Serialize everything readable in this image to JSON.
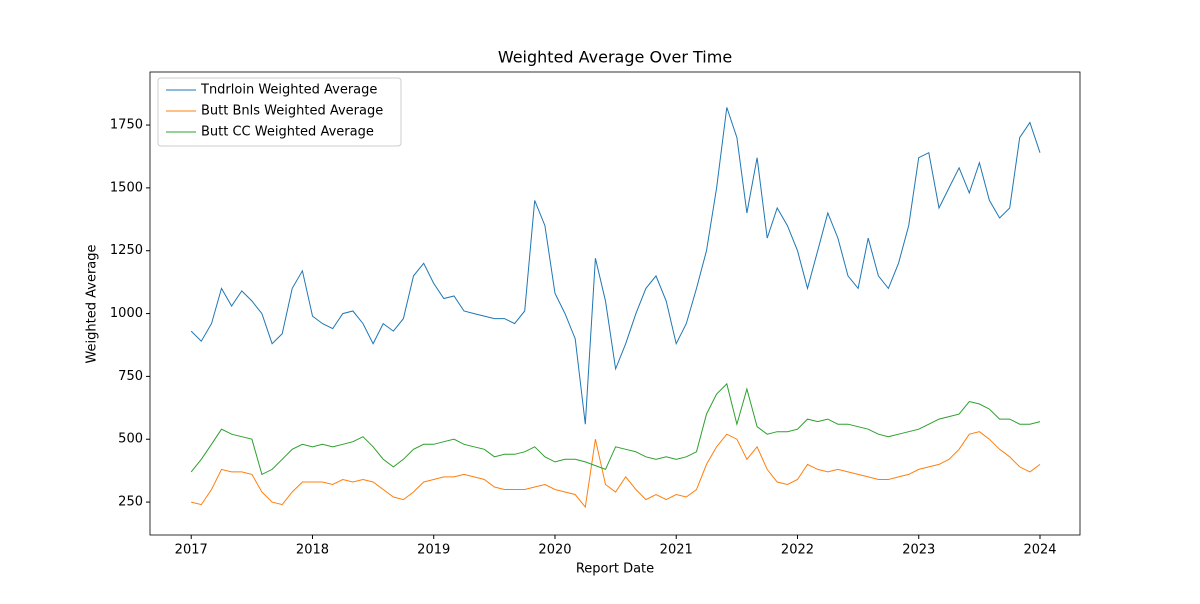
{
  "chart_data": {
    "type": "line",
    "title": "Weighted Average Over Time",
    "xlabel": "Report Date",
    "ylabel": "Weighted Average",
    "x": [
      2017,
      2017.083,
      2017.167,
      2017.25,
      2017.333,
      2017.417,
      2017.5,
      2017.583,
      2017.667,
      2017.75,
      2017.833,
      2017.917,
      2018,
      2018.083,
      2018.167,
      2018.25,
      2018.333,
      2018.417,
      2018.5,
      2018.583,
      2018.667,
      2018.75,
      2018.833,
      2018.917,
      2019,
      2019.083,
      2019.167,
      2019.25,
      2019.333,
      2019.417,
      2019.5,
      2019.583,
      2019.667,
      2019.75,
      2019.833,
      2019.917,
      2020,
      2020.083,
      2020.167,
      2020.25,
      2020.333,
      2020.417,
      2020.5,
      2020.583,
      2020.667,
      2020.75,
      2020.833,
      2020.917,
      2021,
      2021.083,
      2021.167,
      2021.25,
      2021.333,
      2021.417,
      2021.5,
      2021.583,
      2021.667,
      2021.75,
      2021.833,
      2021.917,
      2022,
      2022.083,
      2022.167,
      2022.25,
      2022.333,
      2022.417,
      2022.5,
      2022.583,
      2022.667,
      2022.75,
      2022.833,
      2022.917,
      2023,
      2023.083,
      2023.167,
      2023.25,
      2023.333,
      2023.417,
      2023.5,
      2023.583,
      2023.667,
      2023.75,
      2023.833,
      2023.917,
      2024
    ],
    "series": [
      {
        "name": "Tndrloin Weighted Average",
        "color": "#1f77b4",
        "values": [
          930,
          890,
          960,
          1100,
          1030,
          1090,
          1050,
          1000,
          880,
          920,
          1100,
          1170,
          990,
          960,
          940,
          1000,
          1010,
          960,
          880,
          960,
          930,
          980,
          1150,
          1200,
          1120,
          1060,
          1070,
          1010,
          1000,
          990,
          980,
          980,
          960,
          1010,
          1450,
          1350,
          1080,
          1000,
          900,
          560,
          1220,
          1050,
          780,
          880,
          1000,
          1100,
          1150,
          1050,
          880,
          960,
          1100,
          1250,
          1500,
          1820,
          1700,
          1400,
          1620,
          1300,
          1420,
          1350,
          1250,
          1100,
          1250,
          1400,
          1300,
          1150,
          1100,
          1300,
          1150,
          1100,
          1200,
          1350,
          1620,
          1640,
          1420,
          1500,
          1580,
          1480,
          1600,
          1450,
          1380,
          1420,
          1700,
          1760,
          1640
        ]
      },
      {
        "name": "Butt Bnls Weighted Average",
        "color": "#ff7f0e",
        "values": [
          250,
          240,
          300,
          380,
          370,
          370,
          360,
          290,
          250,
          240,
          290,
          330,
          330,
          330,
          320,
          340,
          330,
          340,
          330,
          300,
          270,
          260,
          290,
          330,
          340,
          350,
          350,
          360,
          350,
          340,
          310,
          300,
          300,
          300,
          310,
          320,
          300,
          290,
          280,
          230,
          500,
          320,
          290,
          350,
          300,
          260,
          280,
          260,
          280,
          270,
          300,
          400,
          470,
          520,
          500,
          420,
          470,
          380,
          330,
          320,
          340,
          400,
          380,
          370,
          380,
          370,
          360,
          350,
          340,
          340,
          350,
          360,
          380,
          390,
          400,
          420,
          460,
          520,
          530,
          500,
          460,
          430,
          390,
          370,
          400
        ]
      },
      {
        "name": "Butt CC Weighted Average",
        "color": "#2ca02c",
        "values": [
          370,
          420,
          480,
          540,
          520,
          510,
          500,
          360,
          380,
          420,
          460,
          480,
          470,
          480,
          470,
          480,
          490,
          510,
          470,
          420,
          390,
          420,
          460,
          480,
          480,
          490,
          500,
          480,
          470,
          460,
          430,
          440,
          440,
          450,
          470,
          430,
          410,
          420,
          420,
          410,
          395,
          380,
          470,
          460,
          450,
          430,
          420,
          430,
          420,
          430,
          450,
          600,
          680,
          720,
          560,
          700,
          550,
          520,
          530,
          530,
          540,
          580,
          570,
          580,
          560,
          560,
          550,
          540,
          520,
          510,
          520,
          530,
          540,
          560,
          580,
          590,
          600,
          650,
          640,
          620,
          580,
          580,
          560,
          560,
          570
        ]
      }
    ],
    "xlim": [
      2016.66,
      2024.33
    ],
    "xticks": [
      2017,
      2018,
      2019,
      2020,
      2021,
      2022,
      2023,
      2024
    ],
    "ylim": [
      119,
      1961
    ],
    "yticks": [
      250,
      500,
      750,
      1000,
      1250,
      1500,
      1750
    ],
    "legend": "upper left"
  }
}
